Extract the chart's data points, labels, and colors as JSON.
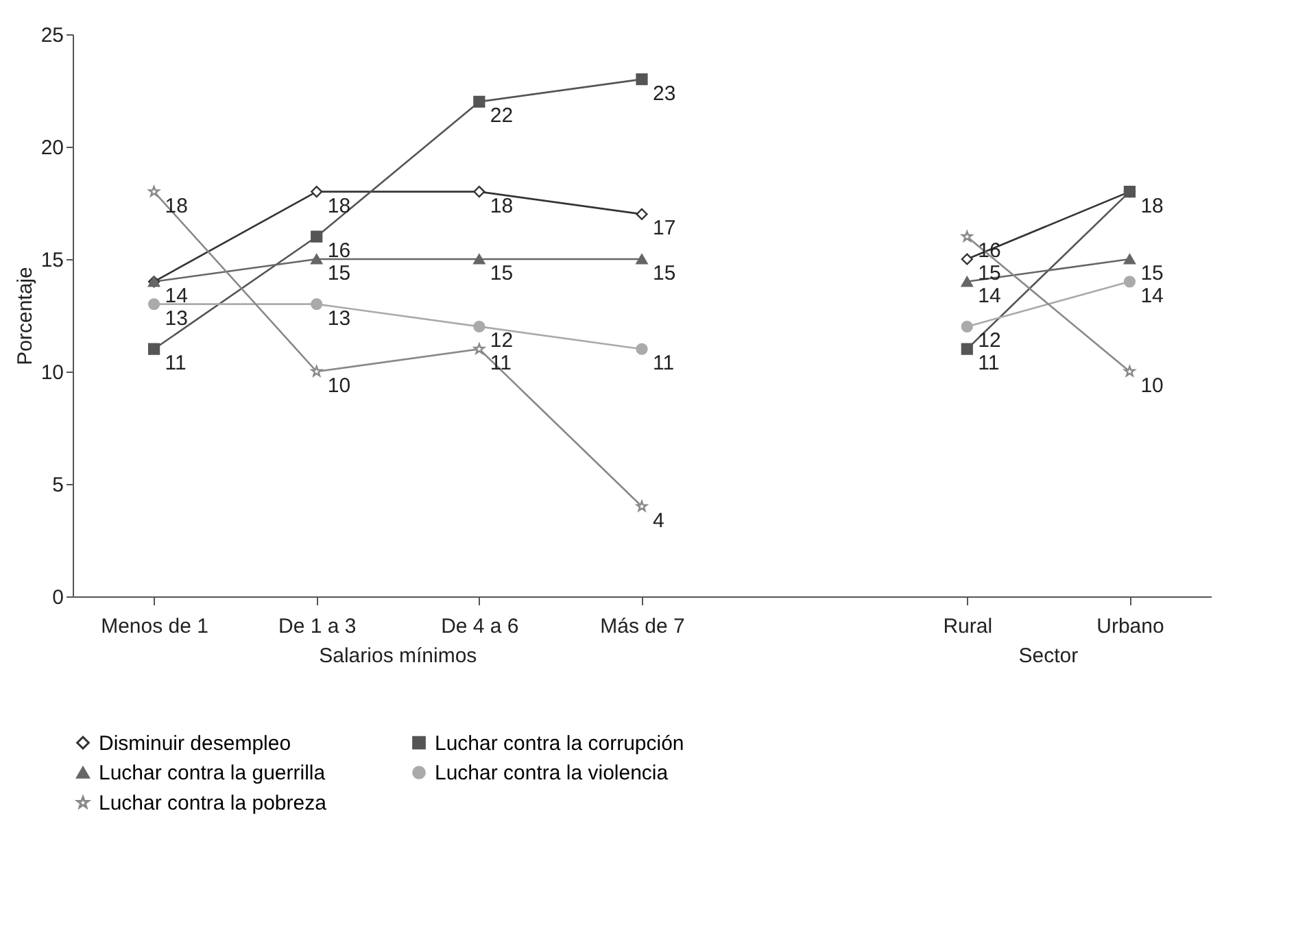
{
  "chart_data": {
    "type": "line",
    "ylabel": "Porcentaje",
    "categories": [
      "Menos de 1",
      "De 1 a 3",
      "De 4 a 6",
      "Más de 7",
      null,
      "Rural",
      "Urbano"
    ],
    "annotations": [
      "Salarios mínimos",
      "Sector"
    ],
    "series": [
      {
        "name": "Disminuir desempleo",
        "color": "#333333",
        "marker": "diamond",
        "values": [
          14,
          18,
          18,
          17,
          null,
          15,
          18
        ],
        "value_labels": [
          "14",
          "18",
          "18",
          "17",
          null,
          "15",
          null
        ]
      },
      {
        "name": "Luchar contra la corrupción",
        "color": "#555555",
        "marker": "square",
        "values": [
          11,
          16,
          22,
          23,
          null,
          11,
          18
        ],
        "value_labels": [
          "11",
          "16",
          "22",
          "23",
          null,
          "11",
          "18"
        ]
      },
      {
        "name": "Luchar contra la guerrilla",
        "color": "#666666",
        "marker": "triangle",
        "values": [
          14,
          15,
          15,
          15,
          null,
          14,
          15
        ],
        "value_labels": [
          null,
          "15",
          "15",
          "15",
          null,
          "14",
          "15"
        ]
      },
      {
        "name": "Luchar contra la violencia",
        "color": "#aaaaaa",
        "marker": "circle",
        "values": [
          13,
          13,
          12,
          11,
          null,
          12,
          14
        ],
        "value_labels": [
          "13",
          "13",
          "12",
          "11",
          null,
          "12",
          "14"
        ]
      },
      {
        "name": "Luchar contra la pobreza",
        "color": "#888888",
        "marker": "star",
        "values": [
          18,
          10,
          11,
          4,
          null,
          16,
          10
        ],
        "value_labels": [
          "18",
          "10",
          "11",
          "4",
          null,
          "16",
          "10"
        ]
      }
    ],
    "ylim": [
      0,
      25
    ],
    "yticks": [
      0,
      5,
      10,
      15,
      20,
      25
    ],
    "grid": false,
    "legend": "bottom"
  }
}
